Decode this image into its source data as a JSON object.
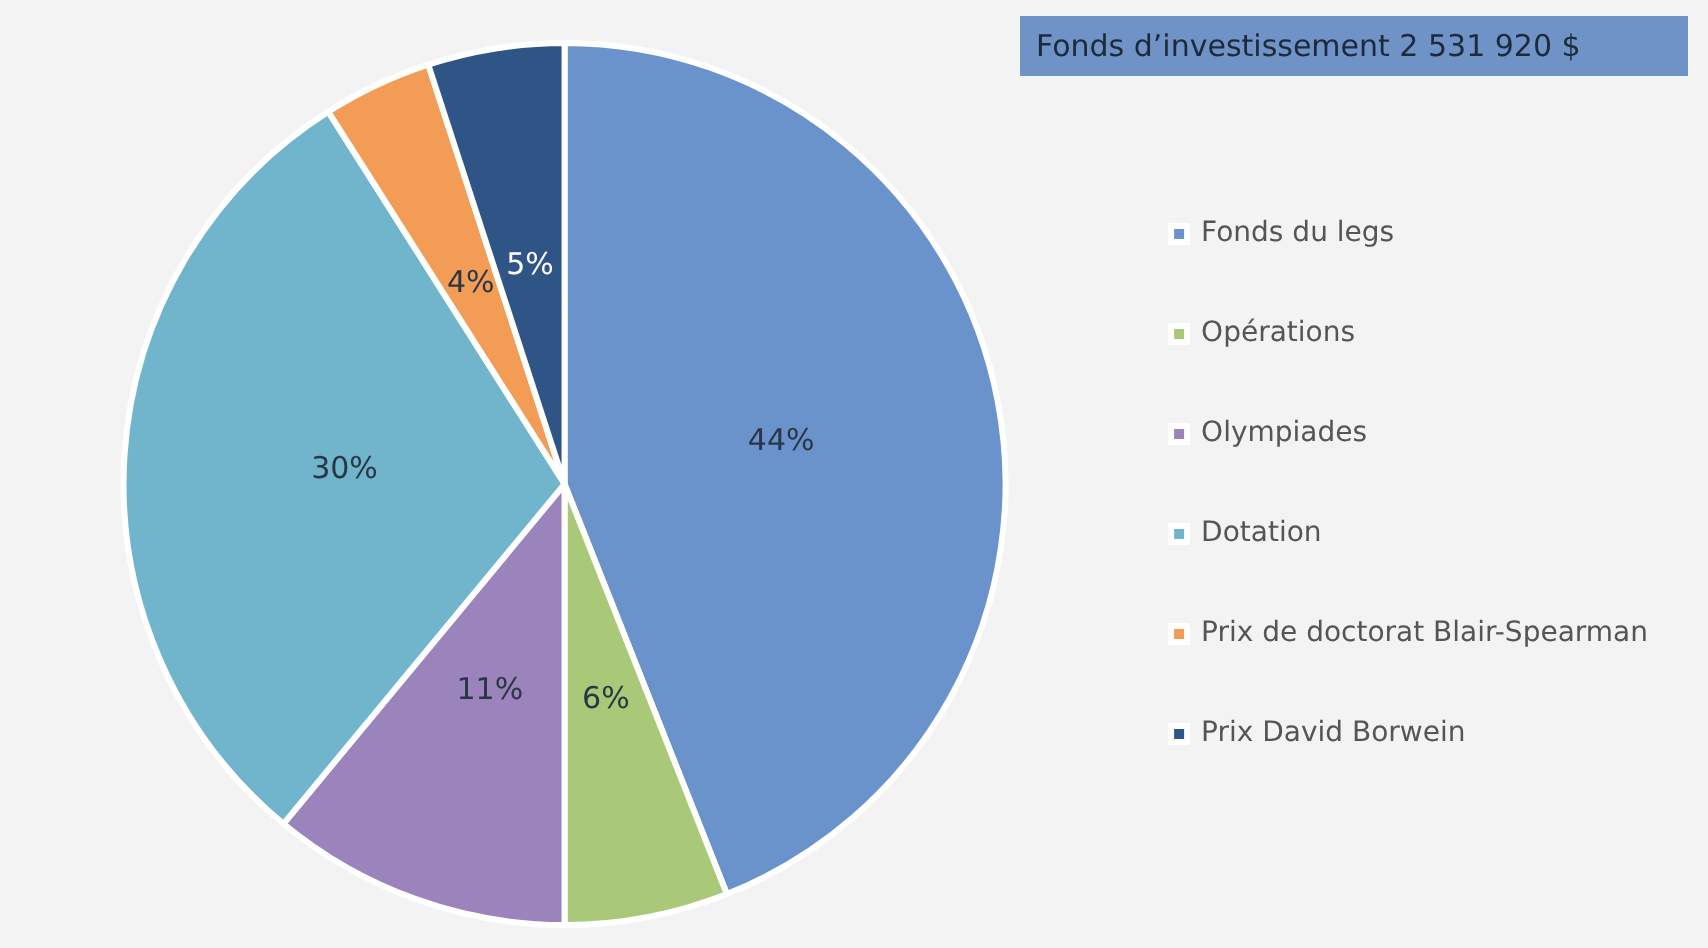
{
  "chart_data": {
    "type": "pie",
    "title": "Fonds d’investissement 2 531 920 $",
    "categories": [
      "Fonds du legs",
      "Opérations",
      "Olympiades",
      "Dotation",
      "Prix de doctorat Blair-Spearman",
      "Prix David Borwein"
    ],
    "values": [
      44,
      6,
      11,
      30,
      4,
      5
    ],
    "value_labels": [
      "44%",
      "6%",
      "11%",
      "30%",
      "4%",
      "5%"
    ],
    "colors": [
      "#6a93cc",
      "#a9c878",
      "#9a84bb",
      "#70b5cc",
      "#f39c55",
      "#2f5586"
    ],
    "legend": "right"
  }
}
